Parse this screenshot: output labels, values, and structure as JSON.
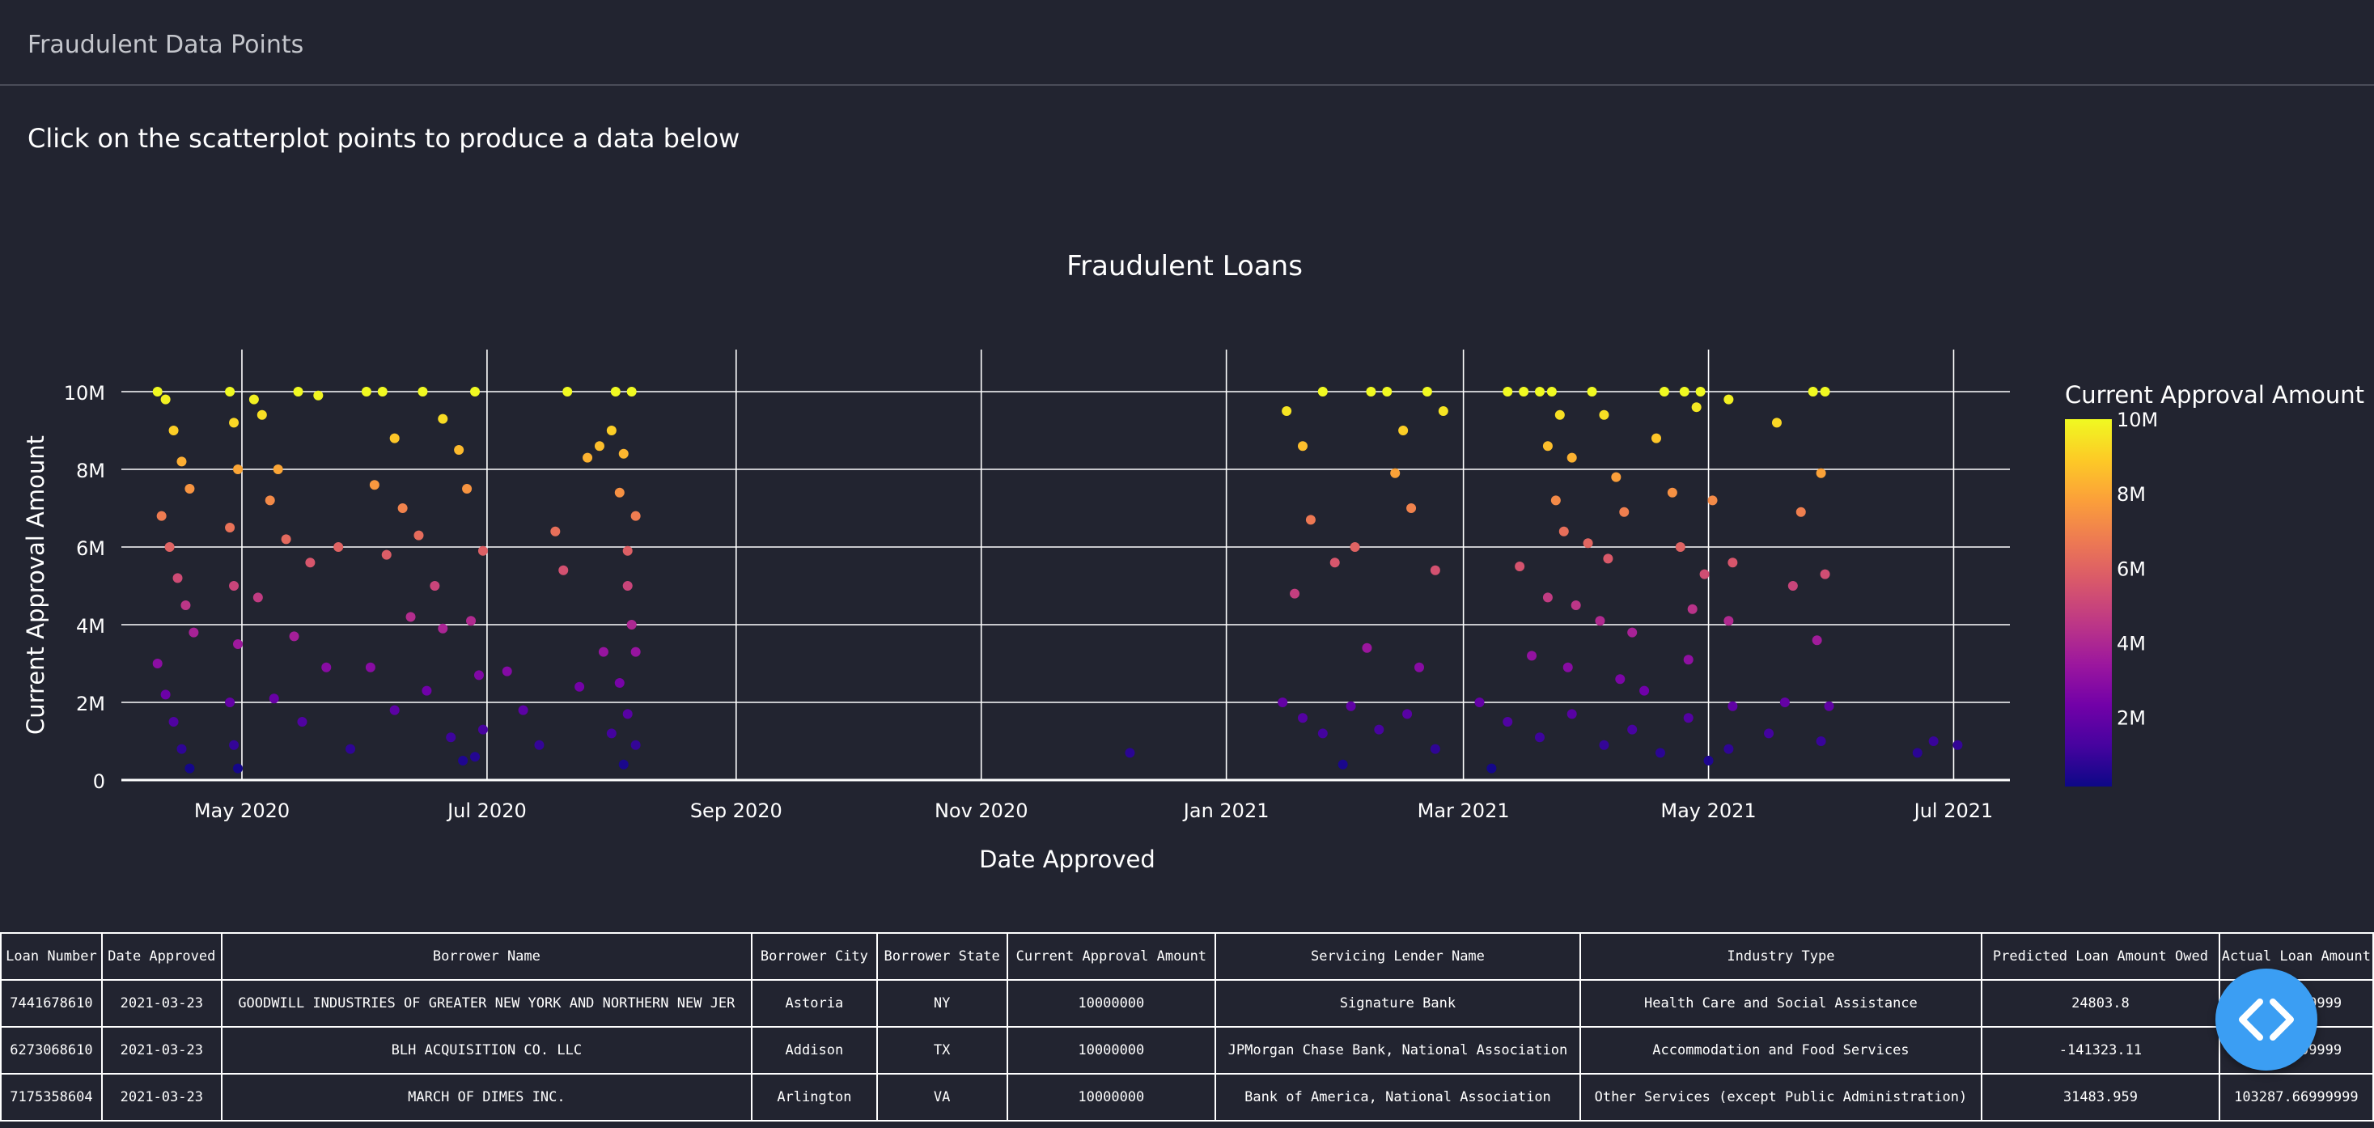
{
  "header": {
    "title": "Fraudulent Data Points"
  },
  "instruction": "Click on the scatterplot points to produce a data below",
  "chart_data": {
    "type": "scatter",
    "title": "Fraudulent Loans",
    "xlabel": "Date Approved",
    "ylabel": "Current Approval Amount",
    "x_axis_type": "date",
    "xlim": [
      "2020-04-01",
      "2021-07-15"
    ],
    "ylim": [
      0,
      10500000
    ],
    "x_ticks": [
      {
        "date": "2020-05-01",
        "label": "May 2020"
      },
      {
        "date": "2020-07-01",
        "label": "Jul 2020"
      },
      {
        "date": "2020-09-01",
        "label": "Sep 2020"
      },
      {
        "date": "2020-11-01",
        "label": "Nov 2020"
      },
      {
        "date": "2021-01-01",
        "label": "Jan 2021"
      },
      {
        "date": "2021-03-01",
        "label": "Mar 2021"
      },
      {
        "date": "2021-05-01",
        "label": "May 2021"
      },
      {
        "date": "2021-07-01",
        "label": "Jul 2021"
      }
    ],
    "y_ticks": [
      {
        "value": 0,
        "label": "0"
      },
      {
        "value": 2000000,
        "label": "2M"
      },
      {
        "value": 4000000,
        "label": "4M"
      },
      {
        "value": 6000000,
        "label": "6M"
      },
      {
        "value": 8000000,
        "label": "8M"
      },
      {
        "value": 10000000,
        "label": "10M"
      }
    ],
    "grid": true,
    "colorbar": {
      "title": "Current Approval Amount",
      "colorscale": "plasma",
      "colors": [
        "#0d0887",
        "#46039f",
        "#7201a8",
        "#9c179e",
        "#bd3786",
        "#d8576b",
        "#ed7953",
        "#fb9f3a",
        "#fdca26",
        "#f0f921"
      ],
      "range": [
        150000,
        10000000
      ],
      "ticks": [
        {
          "value": 2000000,
          "label": "2M"
        },
        {
          "value": 4000000,
          "label": "4M"
        },
        {
          "value": 6000000,
          "label": "6M"
        },
        {
          "value": 8000000,
          "label": "8M"
        },
        {
          "value": 10000000,
          "label": "10M"
        }
      ]
    },
    "series": [
      {
        "points": [
          [
            "2020-04-10",
            10000000
          ],
          [
            "2020-04-12",
            9800000
          ],
          [
            "2020-04-14",
            9000000
          ],
          [
            "2020-04-16",
            8200000
          ],
          [
            "2020-04-18",
            7500000
          ],
          [
            "2020-04-11",
            6800000
          ],
          [
            "2020-04-13",
            6000000
          ],
          [
            "2020-04-15",
            5200000
          ],
          [
            "2020-04-17",
            4500000
          ],
          [
            "2020-04-19",
            3800000
          ],
          [
            "2020-04-10",
            3000000
          ],
          [
            "2020-04-12",
            2200000
          ],
          [
            "2020-04-14",
            1500000
          ],
          [
            "2020-04-16",
            800000
          ],
          [
            "2020-04-18",
            300000
          ],
          [
            "2020-04-28",
            10000000
          ],
          [
            "2020-04-29",
            9200000
          ],
          [
            "2020-04-30",
            8000000
          ],
          [
            "2020-04-28",
            6500000
          ],
          [
            "2020-04-29",
            5000000
          ],
          [
            "2020-04-30",
            3500000
          ],
          [
            "2020-04-28",
            2000000
          ],
          [
            "2020-04-29",
            900000
          ],
          [
            "2020-04-30",
            300000
          ],
          [
            "2020-05-04",
            9800000
          ],
          [
            "2020-05-06",
            9400000
          ],
          [
            "2020-05-10",
            8000000
          ],
          [
            "2020-05-15",
            10000000
          ],
          [
            "2020-05-20",
            9900000
          ],
          [
            "2020-05-08",
            7200000
          ],
          [
            "2020-05-12",
            6200000
          ],
          [
            "2020-05-18",
            5600000
          ],
          [
            "2020-05-25",
            6000000
          ],
          [
            "2020-05-05",
            4700000
          ],
          [
            "2020-05-14",
            3700000
          ],
          [
            "2020-05-22",
            2900000
          ],
          [
            "2020-05-09",
            2100000
          ],
          [
            "2020-05-16",
            1500000
          ],
          [
            "2020-05-28",
            800000
          ],
          [
            "2020-06-01",
            10000000
          ],
          [
            "2020-06-05",
            10000000
          ],
          [
            "2020-06-08",
            8800000
          ],
          [
            "2020-06-03",
            7600000
          ],
          [
            "2020-06-10",
            7000000
          ],
          [
            "2020-06-14",
            6300000
          ],
          [
            "2020-06-06",
            5800000
          ],
          [
            "2020-06-18",
            5000000
          ],
          [
            "2020-06-12",
            4200000
          ],
          [
            "2020-06-20",
            3900000
          ],
          [
            "2020-06-02",
            2900000
          ],
          [
            "2020-06-16",
            2300000
          ],
          [
            "2020-06-08",
            1800000
          ],
          [
            "2020-06-22",
            1100000
          ],
          [
            "2020-06-25",
            500000
          ],
          [
            "2020-06-15",
            10000000
          ],
          [
            "2020-06-20",
            9300000
          ],
          [
            "2020-06-24",
            8500000
          ],
          [
            "2020-06-28",
            10000000
          ],
          [
            "2020-06-26",
            7500000
          ],
          [
            "2020-06-30",
            5900000
          ],
          [
            "2020-06-27",
            4100000
          ],
          [
            "2020-06-29",
            2700000
          ],
          [
            "2020-06-30",
            1300000
          ],
          [
            "2020-06-28",
            600000
          ],
          [
            "2020-07-06",
            2800000
          ],
          [
            "2020-07-10",
            1800000
          ],
          [
            "2020-07-14",
            900000
          ],
          [
            "2020-07-18",
            6400000
          ],
          [
            "2020-07-20",
            5400000
          ],
          [
            "2020-07-24",
            2400000
          ],
          [
            "2020-07-26",
            8300000
          ],
          [
            "2020-07-29",
            8600000
          ],
          [
            "2020-07-30",
            3300000
          ],
          [
            "2020-07-21",
            10000000
          ],
          [
            "2020-08-01",
            9000000
          ],
          [
            "2020-08-03",
            7400000
          ],
          [
            "2020-08-05",
            5900000
          ],
          [
            "2020-08-02",
            10000000
          ],
          [
            "2020-08-06",
            10000000
          ],
          [
            "2020-08-04",
            8400000
          ],
          [
            "2020-08-07",
            6800000
          ],
          [
            "2020-08-05",
            5000000
          ],
          [
            "2020-08-06",
            4000000
          ],
          [
            "2020-08-07",
            3300000
          ],
          [
            "2020-08-03",
            2500000
          ],
          [
            "2020-08-05",
            1700000
          ],
          [
            "2020-08-07",
            900000
          ],
          [
            "2020-08-04",
            400000
          ],
          [
            "2020-08-01",
            1200000
          ],
          [
            "2020-12-08",
            700000
          ],
          [
            "2021-01-16",
            9500000
          ],
          [
            "2021-01-20",
            8600000
          ],
          [
            "2021-01-25",
            10000000
          ],
          [
            "2021-01-22",
            6700000
          ],
          [
            "2021-01-18",
            4800000
          ],
          [
            "2021-01-28",
            5600000
          ],
          [
            "2021-02-02",
            6000000
          ],
          [
            "2021-02-06",
            10000000
          ],
          [
            "2021-02-10",
            10000000
          ],
          [
            "2021-02-14",
            9000000
          ],
          [
            "2021-02-12",
            7900000
          ],
          [
            "2021-02-16",
            7000000
          ],
          [
            "2021-02-20",
            10000000
          ],
          [
            "2021-02-24",
            9500000
          ],
          [
            "2021-02-22",
            5400000
          ],
          [
            "2021-01-15",
            2000000
          ],
          [
            "2021-01-20",
            1600000
          ],
          [
            "2021-01-25",
            1200000
          ],
          [
            "2021-02-01",
            1900000
          ],
          [
            "2021-02-08",
            1300000
          ],
          [
            "2021-02-15",
            1700000
          ],
          [
            "2021-02-22",
            800000
          ],
          [
            "2021-01-30",
            400000
          ],
          [
            "2021-02-18",
            2900000
          ],
          [
            "2021-02-05",
            3400000
          ],
          [
            "2021-03-12",
            10000000
          ],
          [
            "2021-03-16",
            10000000
          ],
          [
            "2021-03-20",
            10000000
          ],
          [
            "2021-03-23",
            10000000
          ],
          [
            "2021-03-25",
            9400000
          ],
          [
            "2021-03-22",
            8600000
          ],
          [
            "2021-03-28",
            8300000
          ],
          [
            "2021-04-02",
            10000000
          ],
          [
            "2021-04-05",
            9400000
          ],
          [
            "2021-04-08",
            7800000
          ],
          [
            "2021-03-24",
            7200000
          ],
          [
            "2021-03-26",
            6400000
          ],
          [
            "2021-04-01",
            6100000
          ],
          [
            "2021-04-06",
            5700000
          ],
          [
            "2021-04-10",
            6900000
          ],
          [
            "2021-03-15",
            5500000
          ],
          [
            "2021-03-22",
            4700000
          ],
          [
            "2021-03-29",
            4500000
          ],
          [
            "2021-04-04",
            4100000
          ],
          [
            "2021-04-12",
            3800000
          ],
          [
            "2021-03-18",
            3200000
          ],
          [
            "2021-03-27",
            2900000
          ],
          [
            "2021-04-09",
            2600000
          ],
          [
            "2021-04-15",
            2300000
          ],
          [
            "2021-04-20",
            10000000
          ],
          [
            "2021-04-18",
            8800000
          ],
          [
            "2021-04-22",
            7400000
          ],
          [
            "2021-04-25",
            10000000
          ],
          [
            "2021-04-28",
            9600000
          ],
          [
            "2021-04-24",
            6000000
          ],
          [
            "2021-04-27",
            4400000
          ],
          [
            "2021-04-30",
            5300000
          ],
          [
            "2021-04-26",
            3100000
          ],
          [
            "2021-04-29",
            10000000
          ],
          [
            "2021-05-02",
            7200000
          ],
          [
            "2021-03-05",
            2000000
          ],
          [
            "2021-03-12",
            1500000
          ],
          [
            "2021-03-20",
            1100000
          ],
          [
            "2021-03-28",
            1700000
          ],
          [
            "2021-04-05",
            900000
          ],
          [
            "2021-04-12",
            1300000
          ],
          [
            "2021-04-19",
            700000
          ],
          [
            "2021-04-26",
            1600000
          ],
          [
            "2021-05-01",
            500000
          ],
          [
            "2021-03-08",
            300000
          ],
          [
            "2021-05-06",
            9800000
          ],
          [
            "2021-05-07",
            5600000
          ],
          [
            "2021-05-06",
            4100000
          ],
          [
            "2021-05-07",
            1900000
          ],
          [
            "2021-05-06",
            800000
          ],
          [
            "2021-05-18",
            9200000
          ],
          [
            "2021-05-20",
            2000000
          ],
          [
            "2021-05-22",
            5000000
          ],
          [
            "2021-05-24",
            6900000
          ],
          [
            "2021-05-16",
            1200000
          ],
          [
            "2021-05-27",
            10000000
          ],
          [
            "2021-05-30",
            10000000
          ],
          [
            "2021-05-29",
            7900000
          ],
          [
            "2021-05-30",
            5300000
          ],
          [
            "2021-05-28",
            3600000
          ],
          [
            "2021-05-31",
            1900000
          ],
          [
            "2021-05-29",
            1000000
          ],
          [
            "2021-06-22",
            700000
          ],
          [
            "2021-06-26",
            1000000
          ],
          [
            "2021-07-02",
            900000
          ]
        ]
      }
    ]
  },
  "table": {
    "columns": [
      "Loan Number",
      "Date Approved",
      "Borrower Name",
      "Borrower City",
      "Borrower State",
      "Current Approval Amount",
      "Servicing Lender Name",
      "Industry Type",
      "Predicted Loan Amount Owed",
      "Actual Loan Amount"
    ],
    "rows": [
      [
        "7441678610",
        "2021-03-23",
        "GOODWILL INDUSTRIES OF GREATER NEW YORK AND NORTHERN NEW JER",
        "Astoria",
        "NY",
        "10000000",
        "Signature Bank",
        "Health Care and Social Assistance",
        "24803.8",
        "82.66999999"
      ],
      [
        "6273068610",
        "2021-03-23",
        "BLH ACQUISITION CO. LLC",
        "Addison",
        "TX",
        "10000000",
        "JPMorgan Chase Bank, National Association",
        "Accommodation and Food Services",
        "-141323.11",
        "18.77999999"
      ],
      [
        "7175358604",
        "2021-03-23",
        "MARCH OF DIMES INC.",
        "Arlington",
        "VA",
        "10000000",
        "Bank of America, National Association",
        "Other Services (except Public Administration)",
        "31483.959",
        "103287.66999999"
      ]
    ]
  },
  "icons": {
    "code_toggle": "code-brackets-icon"
  }
}
